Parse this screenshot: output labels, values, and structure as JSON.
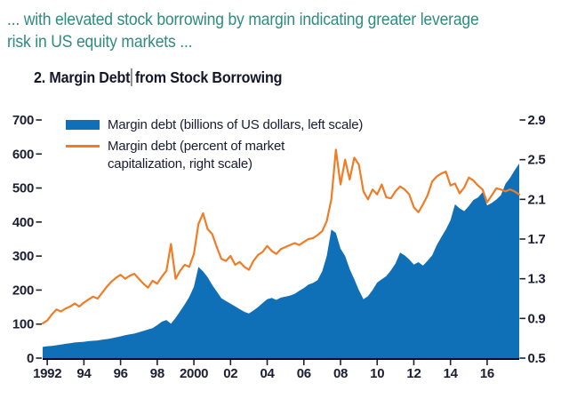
{
  "caption": {
    "lines": [
      "... with elevated stock borrowing by margin indicating greater leverage",
      "risk in US equity markets ..."
    ]
  },
  "chart": {
    "title_before_cursor": "2. Margin Debt",
    "title_after_cursor": "from Stock Borrowing",
    "text_cursor_visible": true
  },
  "legend": {
    "items": [
      {
        "label": "Margin debt (billions of US dollars, left scale)",
        "swatch": "area"
      },
      {
        "label": "Margin debt (percent of market capitalization, right scale)",
        "swatch": "line"
      }
    ]
  },
  "colors": {
    "margin_debt_area": "#0f70b7",
    "margin_debt_line": "#f07c25",
    "caption_text": "#2e8b80",
    "axis_text": "#1d1d33",
    "axis_line": "#000000"
  },
  "chart_data": {
    "type": "area+line",
    "title": "2. Margin Debt from Stock Borrowing",
    "grid": false,
    "legend_position": "top-left",
    "x_axis": {
      "range": [
        1991.75,
        2017.75
      ],
      "ticks": [
        1992,
        1994,
        1996,
        1998,
        2000,
        2002,
        2004,
        2006,
        2008,
        2010,
        2012,
        2014,
        2016
      ],
      "tick_labels": [
        "1992",
        "94",
        "96",
        "98",
        "2000",
        "02",
        "04",
        "06",
        "08",
        "10",
        "12",
        "14",
        "16"
      ]
    },
    "left_axis": {
      "range": [
        0,
        700
      ],
      "ticks": [
        0,
        100,
        200,
        300,
        400,
        500,
        600,
        700
      ]
    },
    "right_axis": {
      "range": [
        0.5,
        2.9
      ],
      "ticks": [
        0.5,
        0.9,
        1.3,
        1.7,
        2.1,
        2.5,
        2.9
      ]
    },
    "x": [
      1991.75,
      1992,
      1992.25,
      1992.5,
      1992.75,
      1993,
      1993.25,
      1993.5,
      1993.75,
      1994,
      1994.25,
      1994.5,
      1994.75,
      1995,
      1995.25,
      1995.5,
      1995.75,
      1996,
      1996.25,
      1996.5,
      1996.75,
      1997,
      1997.25,
      1997.5,
      1997.75,
      1998,
      1998.25,
      1998.5,
      1998.75,
      1999,
      1999.25,
      1999.5,
      1999.75,
      2000,
      2000.25,
      2000.5,
      2000.75,
      2001,
      2001.25,
      2001.5,
      2001.75,
      2002,
      2002.25,
      2002.5,
      2002.75,
      2003,
      2003.25,
      2003.5,
      2003.75,
      2004,
      2004.25,
      2004.5,
      2004.75,
      2005,
      2005.25,
      2005.5,
      2005.75,
      2006,
      2006.25,
      2006.5,
      2006.75,
      2007,
      2007.25,
      2007.5,
      2007.75,
      2008,
      2008.25,
      2008.5,
      2008.75,
      2009,
      2009.25,
      2009.5,
      2009.75,
      2010,
      2010.25,
      2010.5,
      2010.75,
      2011,
      2011.25,
      2011.5,
      2011.75,
      2012,
      2012.25,
      2012.5,
      2012.75,
      2013,
      2013.25,
      2013.5,
      2013.75,
      2014,
      2014.25,
      2014.5,
      2014.75,
      2015,
      2015.25,
      2015.5,
      2015.75,
      2016,
      2016.25,
      2016.5,
      2016.75,
      2017,
      2017.25,
      2017.5,
      2017.75
    ],
    "series": [
      {
        "name": "Margin debt (billions of US dollars, left scale)",
        "style": "area",
        "axis": "left",
        "color": "#0f70b7",
        "values": [
          33,
          35,
          36,
          38,
          40,
          42,
          44,
          46,
          47,
          48,
          50,
          51,
          52,
          54,
          56,
          58,
          61,
          64,
          67,
          70,
          72,
          76,
          80,
          84,
          88,
          97,
          107,
          112,
          101,
          118,
          138,
          158,
          180,
          210,
          268,
          255,
          238,
          215,
          196,
          176,
          168,
          160,
          152,
          144,
          136,
          131,
          140,
          150,
          162,
          173,
          177,
          171,
          178,
          181,
          184,
          189,
          198,
          206,
          216,
          221,
          229,
          255,
          300,
          378,
          368,
          322,
          300,
          262,
          232,
          200,
          173,
          182,
          200,
          222,
          232,
          241,
          258,
          278,
          310,
          302,
          290,
          275,
          282,
          272,
          286,
          302,
          332,
          356,
          378,
          405,
          452,
          440,
          432,
          447,
          465,
          472,
          488,
          449,
          456,
          466,
          479,
          512,
          530,
          552,
          572
        ]
      },
      {
        "name": "Margin debt (percent of market capitalization, right scale)",
        "style": "line",
        "axis": "right",
        "color": "#f07c25",
        "values": [
          0.85,
          0.88,
          0.94,
          0.99,
          0.97,
          1.0,
          1.02,
          1.05,
          1.02,
          1.06,
          1.09,
          1.12,
          1.1,
          1.16,
          1.22,
          1.27,
          1.31,
          1.34,
          1.3,
          1.33,
          1.35,
          1.3,
          1.25,
          1.21,
          1.28,
          1.25,
          1.32,
          1.38,
          1.65,
          1.3,
          1.38,
          1.44,
          1.42,
          1.55,
          1.85,
          1.96,
          1.8,
          1.75,
          1.62,
          1.5,
          1.48,
          1.53,
          1.44,
          1.47,
          1.42,
          1.39,
          1.48,
          1.54,
          1.57,
          1.63,
          1.58,
          1.55,
          1.6,
          1.62,
          1.64,
          1.66,
          1.64,
          1.67,
          1.7,
          1.71,
          1.74,
          1.78,
          1.88,
          2.1,
          2.6,
          2.25,
          2.5,
          2.3,
          2.52,
          2.45,
          2.18,
          2.1,
          2.2,
          2.15,
          2.25,
          2.12,
          2.11,
          2.18,
          2.23,
          2.2,
          2.15,
          2.02,
          1.97,
          2.05,
          2.14,
          2.28,
          2.33,
          2.36,
          2.38,
          2.24,
          2.26,
          2.16,
          2.22,
          2.32,
          2.29,
          2.24,
          2.2,
          2.07,
          2.14,
          2.21,
          2.2,
          2.18,
          2.2,
          2.18,
          2.15
        ]
      }
    ]
  }
}
